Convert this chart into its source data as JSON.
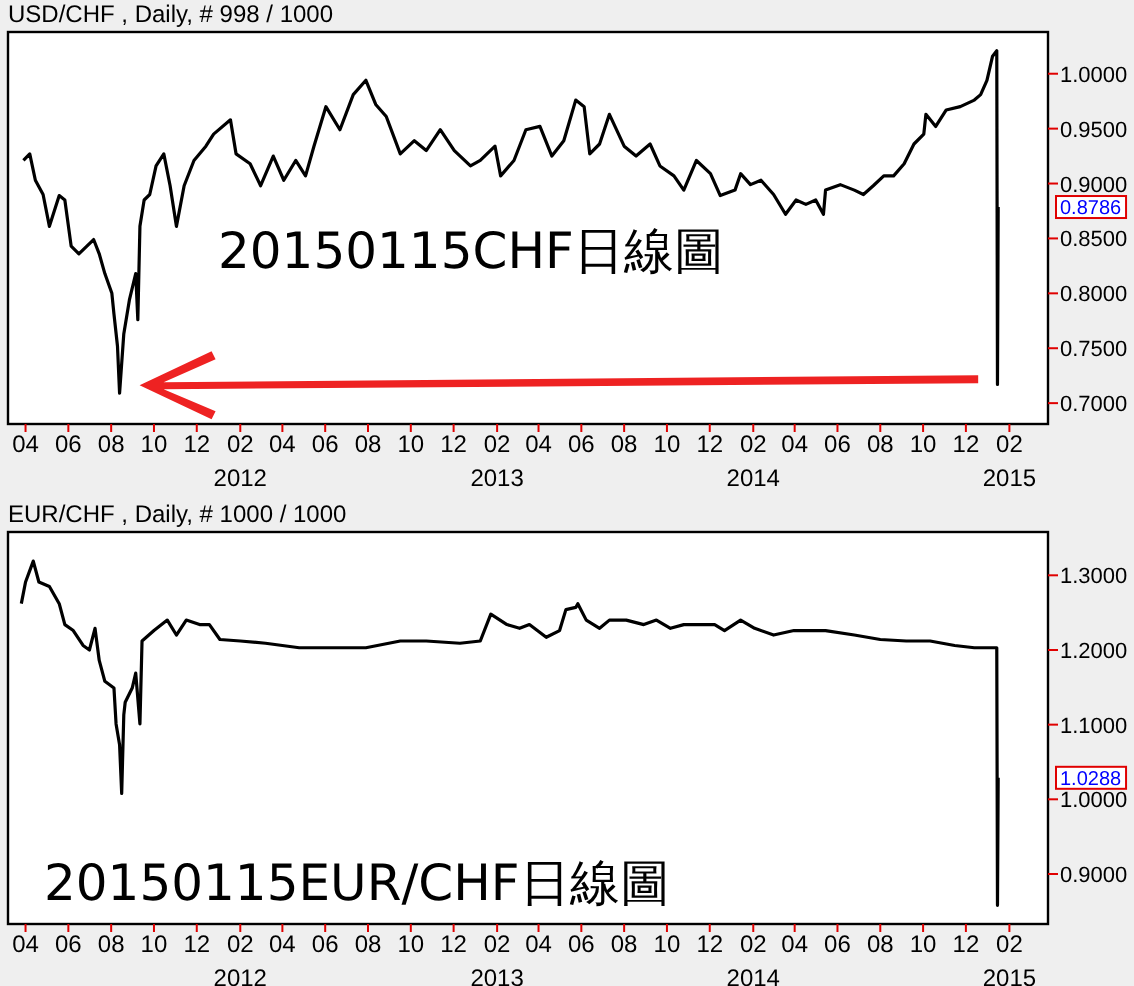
{
  "chart_data": [
    {
      "type": "line",
      "title": "USD/CHF , Daily, # 998 / 1000",
      "annotations": [
        "20150115CHF日線圖",
        "0.8786",
        "2012",
        "2013",
        "2014",
        "2015"
      ],
      "xlim": [
        "2011-03-07",
        "2015-03-28"
      ],
      "xticks": [
        {
          "value": "2011-04-01",
          "label": "04"
        },
        {
          "value": "2011-06-01",
          "label": "06"
        },
        {
          "value": "2011-08-01",
          "label": "08"
        },
        {
          "value": "2011-10-01",
          "label": "10"
        },
        {
          "value": "2011-12-01",
          "label": "12"
        },
        {
          "value": "2012-02-01",
          "label": "02"
        },
        {
          "value": "2012-04-01",
          "label": "04"
        },
        {
          "value": "2012-06-01",
          "label": "06"
        },
        {
          "value": "2012-08-01",
          "label": "08"
        },
        {
          "value": "2012-10-01",
          "label": "10"
        },
        {
          "value": "2012-12-01",
          "label": "12"
        },
        {
          "value": "2013-02-01",
          "label": "02"
        },
        {
          "value": "2013-04-01",
          "label": "04"
        },
        {
          "value": "2013-06-01",
          "label": "06"
        },
        {
          "value": "2013-08-01",
          "label": "08"
        },
        {
          "value": "2013-10-01",
          "label": "10"
        },
        {
          "value": "2013-12-01",
          "label": "12"
        },
        {
          "value": "2014-02-01",
          "label": "02"
        },
        {
          "value": "2014-04-01",
          "label": "04"
        },
        {
          "value": "2014-06-01",
          "label": "06"
        },
        {
          "value": "2014-08-01",
          "label": "08"
        },
        {
          "value": "2014-10-01",
          "label": "10"
        },
        {
          "value": "2014-12-01",
          "label": "12"
        },
        {
          "value": "2015-02-01",
          "label": "02"
        }
      ],
      "ylim": [
        0.681,
        1.038
      ],
      "yticks": [
        {
          "value": 0.7,
          "label": "0.7000"
        },
        {
          "value": 0.75,
          "label": "0.7500"
        },
        {
          "value": 0.8,
          "label": "0.8000"
        },
        {
          "value": 0.85,
          "label": "0.8500"
        },
        {
          "value": 0.9,
          "label": "0.9000"
        },
        {
          "value": 0.95,
          "label": "0.9500"
        },
        {
          "value": 1.0,
          "label": "1.0000"
        }
      ],
      "marker": "none",
      "line_style": "solid",
      "series": [
        {
          "color": "#000000",
          "x": [
            "2011-03-29",
            "2011-04-07",
            "2011-04-15",
            "2011-04-26",
            "2011-05-05",
            "2011-05-19",
            "2011-05-27",
            "2011-06-05",
            "2011-06-16",
            "2011-07-07",
            "2011-07-15",
            "2011-07-23",
            "2011-08-02",
            "2011-08-05",
            "2011-08-10",
            "2011-08-13",
            "2011-08-19",
            "2011-08-27",
            "2011-09-05",
            "2011-09-08",
            "2011-09-11",
            "2011-09-17",
            "2011-09-25",
            "2011-10-04",
            "2011-10-15",
            "2011-10-24",
            "2011-11-02",
            "2011-11-13",
            "2011-11-27",
            "2011-12-14",
            "2011-12-25",
            "2012-01-18",
            "2012-01-26",
            "2012-02-15",
            "2012-03-01",
            "2012-03-19",
            "2012-04-03",
            "2012-04-20",
            "2012-05-04",
            "2012-05-16",
            "2012-06-02",
            "2012-06-22",
            "2012-07-11",
            "2012-07-29",
            "2012-08-12",
            "2012-08-27",
            "2012-09-16",
            "2012-10-06",
            "2012-10-23",
            "2012-11-12",
            "2012-12-02",
            "2012-12-25",
            "2013-01-08",
            "2013-01-29",
            "2013-02-06",
            "2013-02-25",
            "2013-03-14",
            "2013-04-03",
            "2013-04-20",
            "2013-05-07",
            "2013-05-24",
            "2013-06-05",
            "2013-06-13",
            "2013-06-27",
            "2013-07-11",
            "2013-08-01",
            "2013-08-18",
            "2013-09-07",
            "2013-09-21",
            "2013-10-11",
            "2013-10-25",
            "2013-11-12",
            "2013-12-02",
            "2013-12-16",
            "2014-01-06",
            "2014-01-14",
            "2014-01-28",
            "2014-02-12",
            "2014-03-02",
            "2014-03-19",
            "2014-04-03",
            "2014-04-17",
            "2014-05-01",
            "2014-05-12",
            "2014-05-15",
            "2014-06-05",
            "2014-06-25",
            "2014-07-08",
            "2014-07-22",
            "2014-08-06",
            "2014-08-20",
            "2014-09-04",
            "2014-09-18",
            "2014-10-02",
            "2014-10-05",
            "2014-10-19",
            "2014-11-03",
            "2014-11-23",
            "2014-12-13",
            "2014-12-22",
            "2014-12-31",
            "2015-01-08",
            "2015-01-14",
            "2015-01-15",
            "2015-01-16"
          ],
          "values": [
            0.921,
            0.927,
            0.903,
            0.89,
            0.861,
            0.889,
            0.885,
            0.843,
            0.836,
            0.849,
            0.836,
            0.818,
            0.8,
            0.781,
            0.752,
            0.709,
            0.763,
            0.794,
            0.818,
            0.776,
            0.861,
            0.885,
            0.89,
            0.916,
            0.927,
            0.898,
            0.861,
            0.898,
            0.921,
            0.934,
            0.945,
            0.958,
            0.927,
            0.918,
            0.898,
            0.925,
            0.903,
            0.921,
            0.907,
            0.934,
            0.97,
            0.949,
            0.981,
            0.994,
            0.972,
            0.961,
            0.927,
            0.939,
            0.93,
            0.949,
            0.93,
            0.916,
            0.921,
            0.934,
            0.907,
            0.921,
            0.949,
            0.952,
            0.925,
            0.939,
            0.976,
            0.97,
            0.927,
            0.936,
            0.963,
            0.934,
            0.925,
            0.936,
            0.916,
            0.907,
            0.894,
            0.921,
            0.909,
            0.889,
            0.894,
            0.909,
            0.899,
            0.903,
            0.89,
            0.872,
            0.885,
            0.881,
            0.885,
            0.872,
            0.894,
            0.899,
            0.894,
            0.89,
            0.898,
            0.907,
            0.907,
            0.918,
            0.936,
            0.945,
            0.963,
            0.952,
            0.967,
            0.97,
            0.976,
            0.981,
            0.994,
            1.016,
            1.021,
            0.717,
            0.8786
          ]
        }
      ]
    },
    {
      "type": "line",
      "title": "EUR/CHF , Daily, # 1000 / 1000",
      "annotations": [
        "20150115EUR/CHF日線圖",
        "1.0288",
        "2012",
        "2013",
        "2014",
        "2015"
      ],
      "xlim": [
        "2011-03-07",
        "2015-03-28"
      ],
      "xticks": [
        {
          "value": "2011-04-01",
          "label": "04"
        },
        {
          "value": "2011-06-01",
          "label": "06"
        },
        {
          "value": "2011-08-01",
          "label": "08"
        },
        {
          "value": "2011-10-01",
          "label": "10"
        },
        {
          "value": "2011-12-01",
          "label": "12"
        },
        {
          "value": "2012-02-01",
          "label": "02"
        },
        {
          "value": "2012-04-01",
          "label": "04"
        },
        {
          "value": "2012-06-01",
          "label": "06"
        },
        {
          "value": "2012-08-01",
          "label": "08"
        },
        {
          "value": "2012-10-01",
          "label": "10"
        },
        {
          "value": "2012-12-01",
          "label": "12"
        },
        {
          "value": "2013-02-01",
          "label": "02"
        },
        {
          "value": "2013-04-01",
          "label": "04"
        },
        {
          "value": "2013-06-01",
          "label": "06"
        },
        {
          "value": "2013-08-01",
          "label": "08"
        },
        {
          "value": "2013-10-01",
          "label": "10"
        },
        {
          "value": "2013-12-01",
          "label": "12"
        },
        {
          "value": "2014-02-01",
          "label": "02"
        },
        {
          "value": "2014-04-01",
          "label": "04"
        },
        {
          "value": "2014-06-01",
          "label": "06"
        },
        {
          "value": "2014-08-01",
          "label": "08"
        },
        {
          "value": "2014-10-01",
          "label": "10"
        },
        {
          "value": "2014-12-01",
          "label": "12"
        },
        {
          "value": "2015-02-01",
          "label": "02"
        }
      ],
      "ylim": [
        0.833,
        1.358
      ],
      "yticks": [
        {
          "value": 0.9,
          "label": "0.9000"
        },
        {
          "value": 1.0,
          "label": "1.0000"
        },
        {
          "value": 1.1,
          "label": "1.1000"
        },
        {
          "value": 1.2,
          "label": "1.2000"
        },
        {
          "value": 1.3,
          "label": "1.3000"
        }
      ],
      "marker": "none",
      "line_style": "solid",
      "series": [
        {
          "color": "#000000",
          "x": [
            "2011-03-26",
            "2011-04-01",
            "2011-04-12",
            "2011-04-20",
            "2011-05-05",
            "2011-05-19",
            "2011-05-27",
            "2011-06-08",
            "2011-06-22",
            "2011-07-01",
            "2011-07-09",
            "2011-07-15",
            "2011-07-23",
            "2011-08-05",
            "2011-08-08",
            "2011-08-13",
            "2011-08-16",
            "2011-08-19",
            "2011-08-21",
            "2011-08-31",
            "2011-09-05",
            "2011-09-11",
            "2011-09-14",
            "2011-10-01",
            "2011-10-20",
            "2011-11-02",
            "2011-11-16",
            "2011-12-05",
            "2011-12-19",
            "2012-01-03",
            "2012-02-01",
            "2012-03-08",
            "2012-04-25",
            "2012-06-13",
            "2012-07-29",
            "2012-09-16",
            "2012-10-23",
            "2012-12-10",
            "2013-01-08",
            "2013-01-23",
            "2013-02-15",
            "2013-03-05",
            "2013-03-19",
            "2013-04-12",
            "2013-05-01",
            "2013-05-10",
            "2013-05-24",
            "2013-05-27",
            "2013-06-08",
            "2013-06-27",
            "2013-07-11",
            "2013-08-04",
            "2013-08-29",
            "2013-09-16",
            "2013-10-06",
            "2013-10-25",
            "2013-12-08",
            "2013-12-22",
            "2014-01-14",
            "2014-02-03",
            "2014-03-02",
            "2014-03-31",
            "2014-05-15",
            "2014-06-25",
            "2014-08-01",
            "2014-09-07",
            "2014-10-11",
            "2014-11-15",
            "2014-12-13",
            "2015-01-14",
            "2015-01-15",
            "2015-01-16"
          ],
          "values": [
            1.262,
            1.291,
            1.319,
            1.291,
            1.285,
            1.262,
            1.234,
            1.226,
            1.206,
            1.2,
            1.229,
            1.186,
            1.158,
            1.149,
            1.101,
            1.073,
            1.008,
            1.113,
            1.13,
            1.149,
            1.169,
            1.101,
            1.212,
            1.226,
            1.24,
            1.22,
            1.24,
            1.234,
            1.234,
            1.214,
            1.212,
            1.209,
            1.203,
            1.203,
            1.203,
            1.212,
            1.212,
            1.209,
            1.212,
            1.248,
            1.234,
            1.229,
            1.234,
            1.217,
            1.226,
            1.254,
            1.257,
            1.262,
            1.24,
            1.229,
            1.24,
            1.24,
            1.234,
            1.24,
            1.229,
            1.234,
            1.234,
            1.226,
            1.24,
            1.229,
            1.22,
            1.226,
            1.226,
            1.22,
            1.214,
            1.212,
            1.212,
            1.206,
            1.203,
            1.203,
            0.858,
            1.0288
          ]
        }
      ]
    }
  ]
}
